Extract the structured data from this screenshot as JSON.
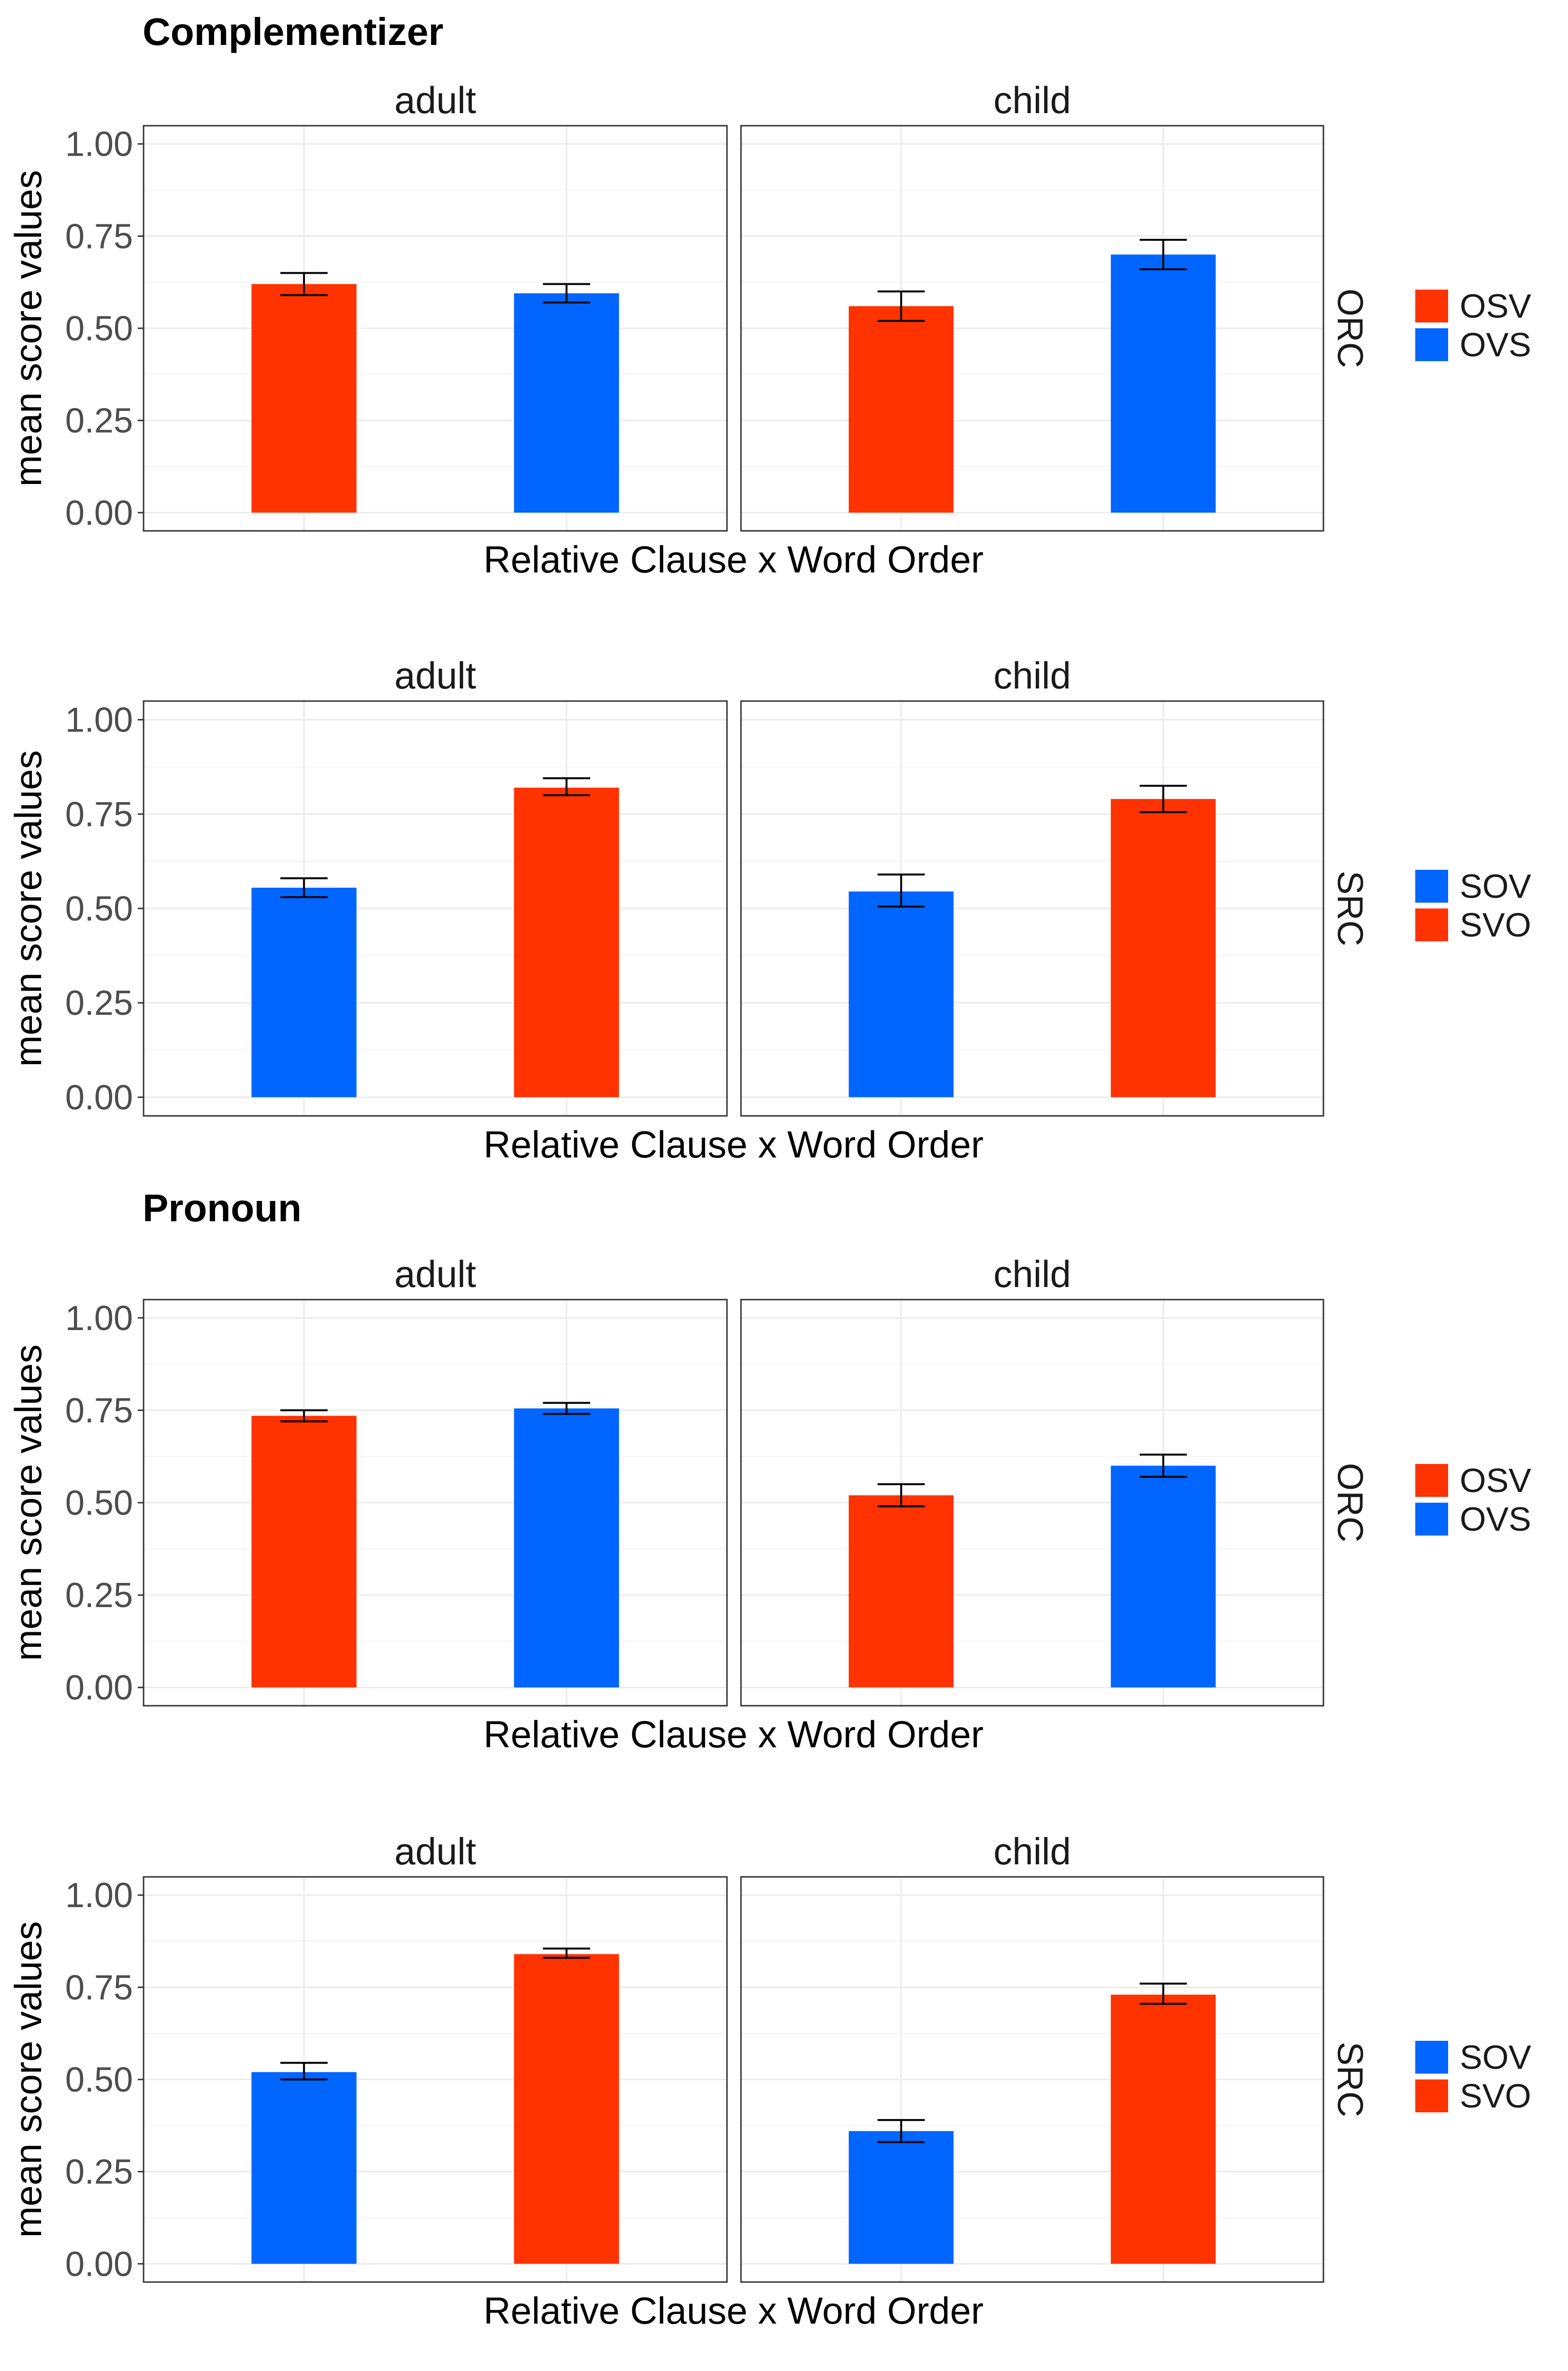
{
  "colors": {
    "red": "#ff3300",
    "blue": "#0066ff"
  },
  "sections": [
    {
      "title": "Complementizer"
    },
    {
      "title": "Pronoun"
    }
  ],
  "chart_data": [
    {
      "type": "bar",
      "section": "Complementizer",
      "facet_row": "ORC",
      "xlabel": "Relative Clause x Word Order",
      "ylabel": "mean score values",
      "ylim": [
        0,
        1
      ],
      "yticks": [
        "0.00",
        "0.25",
        "0.50",
        "0.75",
        "1.00"
      ],
      "legend": [
        {
          "label": "OSV",
          "color": "#ff3300"
        },
        {
          "label": "OVS",
          "color": "#0066ff"
        }
      ],
      "panels": [
        {
          "label": "adult",
          "bars": [
            {
              "group": "OSV",
              "value": 0.62,
              "lower": 0.59,
              "upper": 0.65
            },
            {
              "group": "OVS",
              "value": 0.595,
              "lower": 0.57,
              "upper": 0.62
            }
          ]
        },
        {
          "label": "child",
          "bars": [
            {
              "group": "OSV",
              "value": 0.56,
              "lower": 0.52,
              "upper": 0.6
            },
            {
              "group": "OVS",
              "value": 0.7,
              "lower": 0.66,
              "upper": 0.74
            }
          ]
        }
      ]
    },
    {
      "type": "bar",
      "section": "Complementizer",
      "facet_row": "SRC",
      "xlabel": "Relative Clause x Word Order",
      "ylabel": "mean score values",
      "ylim": [
        0,
        1
      ],
      "yticks": [
        "0.00",
        "0.25",
        "0.50",
        "0.75",
        "1.00"
      ],
      "legend": [
        {
          "label": "SOV",
          "color": "#0066ff"
        },
        {
          "label": "SVO",
          "color": "#ff3300"
        }
      ],
      "panels": [
        {
          "label": "adult",
          "bars": [
            {
              "group": "SOV",
              "value": 0.555,
              "lower": 0.53,
              "upper": 0.58
            },
            {
              "group": "SVO",
              "value": 0.82,
              "lower": 0.8,
              "upper": 0.845
            }
          ]
        },
        {
          "label": "child",
          "bars": [
            {
              "group": "SOV",
              "value": 0.545,
              "lower": 0.505,
              "upper": 0.59
            },
            {
              "group": "SVO",
              "value": 0.79,
              "lower": 0.755,
              "upper": 0.825
            }
          ]
        }
      ]
    },
    {
      "type": "bar",
      "section": "Pronoun",
      "facet_row": "ORC",
      "xlabel": "Relative Clause x Word Order",
      "ylabel": "mean score values",
      "ylim": [
        0,
        1
      ],
      "yticks": [
        "0.00",
        "0.25",
        "0.50",
        "0.75",
        "1.00"
      ],
      "legend": [
        {
          "label": "OSV",
          "color": "#ff3300"
        },
        {
          "label": "OVS",
          "color": "#0066ff"
        }
      ],
      "panels": [
        {
          "label": "adult",
          "bars": [
            {
              "group": "OSV",
              "value": 0.735,
              "lower": 0.72,
              "upper": 0.75
            },
            {
              "group": "OVS",
              "value": 0.755,
              "lower": 0.74,
              "upper": 0.77
            }
          ]
        },
        {
          "label": "child",
          "bars": [
            {
              "group": "OSV",
              "value": 0.52,
              "lower": 0.49,
              "upper": 0.55
            },
            {
              "group": "OVS",
              "value": 0.6,
              "lower": 0.57,
              "upper": 0.63
            }
          ]
        }
      ]
    },
    {
      "type": "bar",
      "section": "Pronoun",
      "facet_row": "SRC",
      "xlabel": "Relative Clause x Word Order",
      "ylabel": "mean score values",
      "ylim": [
        0,
        1
      ],
      "yticks": [
        "0.00",
        "0.25",
        "0.50",
        "0.75",
        "1.00"
      ],
      "legend": [
        {
          "label": "SOV",
          "color": "#0066ff"
        },
        {
          "label": "SVO",
          "color": "#ff3300"
        }
      ],
      "panels": [
        {
          "label": "adult",
          "bars": [
            {
              "group": "SOV",
              "value": 0.52,
              "lower": 0.5,
              "upper": 0.545
            },
            {
              "group": "SVO",
              "value": 0.84,
              "lower": 0.83,
              "upper": 0.855
            }
          ]
        },
        {
          "label": "child",
          "bars": [
            {
              "group": "SOV",
              "value": 0.36,
              "lower": 0.33,
              "upper": 0.39
            },
            {
              "group": "SVO",
              "value": 0.73,
              "lower": 0.705,
              "upper": 0.76
            }
          ]
        }
      ]
    }
  ]
}
